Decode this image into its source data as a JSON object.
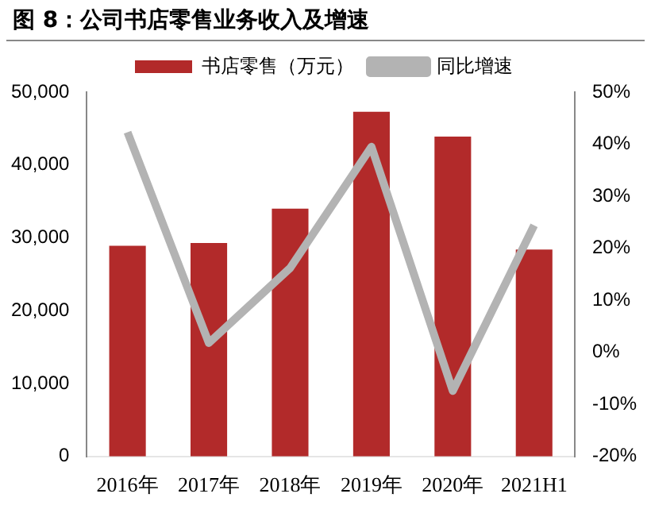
{
  "chart_data": {
    "type": "bar",
    "title": "图 8：公司书店零售业务收入及增速",
    "categories": [
      "2016年",
      "2017年",
      "2018年",
      "2019年",
      "2020年",
      "2021H1"
    ],
    "series": [
      {
        "name": "书店零售（万元）",
        "color": "#b22a2a",
        "values": [
          28900,
          29300,
          34000,
          47300,
          43900,
          28400
        ]
      },
      {
        "name": "同比增速",
        "type": "line",
        "axis": "y2",
        "color": "#b3b3b3",
        "values": [
          42.3,
          1.8,
          16.2,
          39.5,
          -7.4,
          24.4
        ]
      }
    ],
    "ylim": [
      0,
      50000
    ],
    "yticks": [
      0,
      {
        "value": 10000,
        "label": "10,000"
      },
      {
        "value": 20000,
        "label": "20,000"
      },
      {
        "value": 30000,
        "label": "30,000"
      },
      {
        "value": 40000,
        "label": "40,000"
      },
      {
        "value": 50000,
        "label": "50,000"
      }
    ],
    "y2lim": [
      -20,
      50
    ],
    "y2ticks": [
      {
        "value": -20,
        "label": "-20%"
      },
      {
        "value": -10,
        "label": "-10%"
      },
      {
        "value": 0,
        "label": "0%"
      },
      {
        "value": 10,
        "label": "10%"
      },
      {
        "value": 20,
        "label": "20%"
      },
      {
        "value": 30,
        "label": "30%"
      },
      {
        "value": 40,
        "label": "40%"
      },
      {
        "value": 50,
        "label": "50%"
      }
    ],
    "grid": false,
    "legend": "top",
    "marker": "none",
    "line_style": "solid"
  }
}
